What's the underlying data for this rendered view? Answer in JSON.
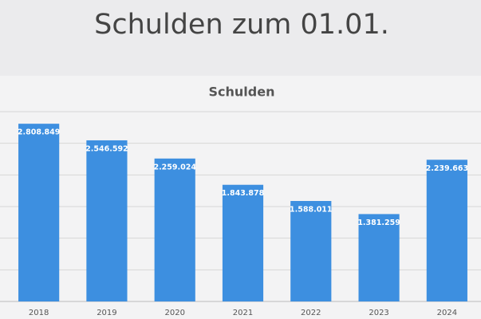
{
  "heading": "Schulden zum 01.01.",
  "chart_data": {
    "type": "bar",
    "title": "Schulden",
    "categories": [
      "2018",
      "2019",
      "2020",
      "2021",
      "2022",
      "2023",
      "2024"
    ],
    "values": [
      2808849,
      2546592,
      2259024,
      1843878,
      1588011,
      1381259,
      2239663
    ],
    "value_labels": [
      "2.808.849",
      "2.546.592",
      "2.259.024",
      "1.843.878",
      "1.588.011",
      "1.381.259",
      "2.239.663"
    ],
    "color": "#3d8fe0",
    "ylim": [
      0,
      3000000
    ],
    "yticks": [
      0,
      500000,
      1000000,
      1500000,
      2000000,
      2500000,
      3000000
    ],
    "grid": true
  }
}
